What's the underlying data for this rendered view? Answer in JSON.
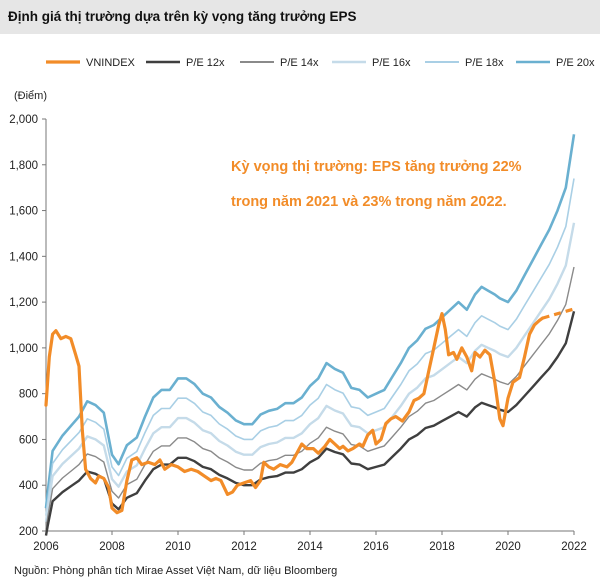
{
  "header": {
    "title": "Định giá thị trường dựa trên kỳ vọng tăng trưởng EPS"
  },
  "footer": {
    "source": "Nguồn: Phòng phân tích Mirae Asset Việt Nam, dữ liệu Bloomberg"
  },
  "chart_data": {
    "type": "line",
    "title": "Định giá thị trường dựa trên kỳ vọng tăng trưởng EPS",
    "ylabel": "(Điểm)",
    "xlabel": "",
    "ylim": [
      200,
      2000
    ],
    "xlim": [
      2006,
      2022
    ],
    "yticks": [
      200,
      400,
      600,
      800,
      1000,
      1200,
      1400,
      1600,
      1800,
      2000
    ],
    "ytick_labels": [
      "200",
      "400",
      "600",
      "800",
      "1,000",
      "1,200",
      "1,400",
      "1,600",
      "1,800",
      "2,000"
    ],
    "xticks": [
      2006,
      2008,
      2010,
      2012,
      2014,
      2016,
      2018,
      2020,
      2022
    ],
    "xtick_labels": [
      "2006",
      "2008",
      "2010",
      "2012",
      "2014",
      "2016",
      "2018",
      "2020",
      "2022"
    ],
    "grid": false,
    "legend_position": "top",
    "annotation": {
      "lines": [
        "Kỳ vọng thị trường: EPS tăng trưởng 22%",
        "trong năm 2021 và 23% trong năm 2022."
      ],
      "color": "#F28C28"
    },
    "base_label": "P/E 12x",
    "pe_multiples": {
      "P/E 12x": 12,
      "P/E 14x": 14,
      "P/E 16x": 16,
      "P/E 18x": 18,
      "P/E 20x": 20
    },
    "series": [
      {
        "name": "VNINDEX",
        "color": "#F28C28",
        "width": 3.2,
        "points": [
          [
            2006.0,
            750
          ],
          [
            2006.1,
            960
          ],
          [
            2006.2,
            1060
          ],
          [
            2006.3,
            1075
          ],
          [
            2006.45,
            1040
          ],
          [
            2006.6,
            1050
          ],
          [
            2006.75,
            1040
          ],
          [
            2006.9,
            970
          ],
          [
            2007.0,
            920
          ],
          [
            2007.1,
            640
          ],
          [
            2007.2,
            470
          ],
          [
            2007.35,
            430
          ],
          [
            2007.5,
            410
          ],
          [
            2007.6,
            440
          ],
          [
            2007.75,
            430
          ],
          [
            2007.9,
            390
          ],
          [
            2008.0,
            300
          ],
          [
            2008.15,
            280
          ],
          [
            2008.3,
            290
          ],
          [
            2008.45,
            420
          ],
          [
            2008.6,
            510
          ],
          [
            2008.75,
            520
          ],
          [
            2008.9,
            490
          ],
          [
            2009.1,
            500
          ],
          [
            2009.3,
            490
          ],
          [
            2009.45,
            510
          ],
          [
            2009.6,
            470
          ],
          [
            2009.8,
            490
          ],
          [
            2010.0,
            480
          ],
          [
            2010.2,
            460
          ],
          [
            2010.4,
            470
          ],
          [
            2010.6,
            460
          ],
          [
            2010.8,
            440
          ],
          [
            2011.0,
            420
          ],
          [
            2011.15,
            430
          ],
          [
            2011.3,
            420
          ],
          [
            2011.5,
            360
          ],
          [
            2011.65,
            370
          ],
          [
            2011.8,
            400
          ],
          [
            2012.0,
            410
          ],
          [
            2012.2,
            420
          ],
          [
            2012.35,
            390
          ],
          [
            2012.5,
            420
          ],
          [
            2012.6,
            500
          ],
          [
            2012.75,
            480
          ],
          [
            2012.9,
            470
          ],
          [
            2013.1,
            490
          ],
          [
            2013.3,
            480
          ],
          [
            2013.45,
            500
          ],
          [
            2013.6,
            540
          ],
          [
            2013.75,
            580
          ],
          [
            2013.9,
            560
          ],
          [
            2014.1,
            560
          ],
          [
            2014.25,
            540
          ],
          [
            2014.45,
            570
          ],
          [
            2014.6,
            600
          ],
          [
            2014.75,
            580
          ],
          [
            2014.9,
            560
          ],
          [
            2015.0,
            570
          ],
          [
            2015.15,
            550
          ],
          [
            2015.3,
            560
          ],
          [
            2015.5,
            580
          ],
          [
            2015.6,
            570
          ],
          [
            2015.75,
            620
          ],
          [
            2015.9,
            640
          ],
          [
            2016.0,
            580
          ],
          [
            2016.15,
            600
          ],
          [
            2016.3,
            670
          ],
          [
            2016.45,
            690
          ],
          [
            2016.6,
            700
          ],
          [
            2016.8,
            680
          ],
          [
            2017.0,
            720
          ],
          [
            2017.15,
            770
          ],
          [
            2017.3,
            780
          ],
          [
            2017.45,
            800
          ],
          [
            2017.6,
            900
          ],
          [
            2017.75,
            1000
          ],
          [
            2017.9,
            1100
          ],
          [
            2018.0,
            1150
          ],
          [
            2018.1,
            1080
          ],
          [
            2018.2,
            970
          ],
          [
            2018.35,
            980
          ],
          [
            2018.45,
            950
          ],
          [
            2018.6,
            1000
          ],
          [
            2018.75,
            960
          ],
          [
            2018.9,
            900
          ],
          [
            2019.0,
            980
          ],
          [
            2019.15,
            960
          ],
          [
            2019.3,
            990
          ],
          [
            2019.45,
            970
          ],
          [
            2019.6,
            850
          ],
          [
            2019.75,
            690
          ],
          [
            2019.85,
            660
          ],
          [
            2020.0,
            780
          ],
          [
            2020.15,
            850
          ],
          [
            2020.35,
            870
          ],
          [
            2020.5,
            960
          ],
          [
            2020.65,
            1060
          ],
          [
            2020.8,
            1100
          ],
          [
            2020.95,
            1120
          ],
          [
            2021.05,
            1130
          ]
        ],
        "forecast": {
          "color": "#F28C28",
          "dashed": true,
          "points": [
            [
              2021.05,
              1130
            ],
            [
              2021.4,
              1145
            ],
            [
              2021.75,
              1160
            ],
            [
              2022.0,
              1170
            ]
          ]
        }
      },
      {
        "name": "P/E 12x",
        "color": "#3f3f3f",
        "width": 2.4,
        "points": [
          [
            2006.0,
            180
          ],
          [
            2006.05,
            220
          ],
          [
            2006.2,
            330
          ],
          [
            2006.5,
            370
          ],
          [
            2006.8,
            400
          ],
          [
            2007.0,
            420
          ],
          [
            2007.25,
            460
          ],
          [
            2007.5,
            450
          ],
          [
            2007.75,
            430
          ],
          [
            2008.0,
            320
          ],
          [
            2008.2,
            295
          ],
          [
            2008.45,
            345
          ],
          [
            2008.75,
            365
          ],
          [
            2009.0,
            420
          ],
          [
            2009.25,
            470
          ],
          [
            2009.5,
            490
          ],
          [
            2009.75,
            490
          ],
          [
            2010.0,
            520
          ],
          [
            2010.25,
            520
          ],
          [
            2010.5,
            505
          ],
          [
            2010.75,
            480
          ],
          [
            2011.0,
            470
          ],
          [
            2011.25,
            445
          ],
          [
            2011.5,
            430
          ],
          [
            2011.75,
            410
          ],
          [
            2012.0,
            400
          ],
          [
            2012.25,
            400
          ],
          [
            2012.5,
            425
          ],
          [
            2012.75,
            435
          ],
          [
            2013.0,
            440
          ],
          [
            2013.25,
            455
          ],
          [
            2013.5,
            455
          ],
          [
            2013.75,
            470
          ],
          [
            2014.0,
            500
          ],
          [
            2014.25,
            520
          ],
          [
            2014.5,
            560
          ],
          [
            2014.75,
            545
          ],
          [
            2015.0,
            535
          ],
          [
            2015.25,
            495
          ],
          [
            2015.5,
            490
          ],
          [
            2015.75,
            470
          ],
          [
            2016.0,
            480
          ],
          [
            2016.25,
            490
          ],
          [
            2016.5,
            525
          ],
          [
            2016.75,
            560
          ],
          [
            2017.0,
            600
          ],
          [
            2017.25,
            620
          ],
          [
            2017.5,
            650
          ],
          [
            2017.75,
            660
          ],
          [
            2018.0,
            680
          ],
          [
            2018.25,
            700
          ],
          [
            2018.5,
            720
          ],
          [
            2018.75,
            700
          ],
          [
            2019.0,
            740
          ],
          [
            2019.2,
            760
          ],
          [
            2019.4,
            750
          ],
          [
            2019.6,
            740
          ],
          [
            2019.75,
            730
          ],
          [
            2020.0,
            720
          ],
          [
            2020.25,
            750
          ],
          [
            2020.5,
            790
          ],
          [
            2020.75,
            830
          ],
          [
            2021.0,
            870
          ],
          [
            2021.25,
            910
          ],
          [
            2021.5,
            960
          ],
          [
            2021.75,
            1020
          ],
          [
            2022.0,
            1160
          ]
        ]
      },
      {
        "name": "P/E 14x",
        "color": "#8a8a8a",
        "width": 1.4
      },
      {
        "name": "P/E 16x",
        "color": "#c5dbe9",
        "width": 2.4
      },
      {
        "name": "P/E 18x",
        "color": "#a9cfe5",
        "width": 1.6
      },
      {
        "name": "P/E 20x",
        "color": "#6ab0d0",
        "width": 2.6
      }
    ]
  }
}
